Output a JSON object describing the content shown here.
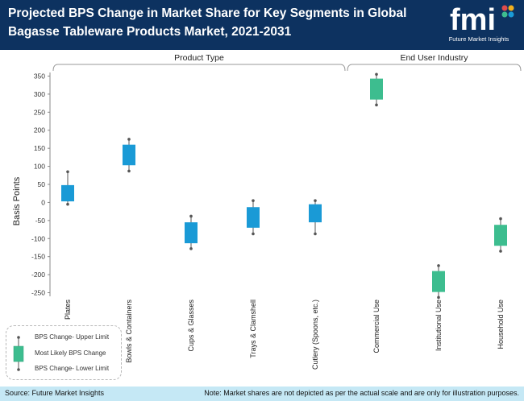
{
  "header": {
    "title": "Projected BPS Change in Market Share for Key Segments in Global Bagasse Tableware Products Market, 2021-2031"
  },
  "logo": {
    "text": "fmi",
    "name": "Future Market Insights"
  },
  "legend": {
    "upper": "BPS Change- Upper Limit",
    "likely": "Most Likely BPS Change",
    "lower": "BPS Change- Lower Limit"
  },
  "footer": {
    "source": "Source: Future Market Insights",
    "note": "Note: Market shares are not depicted as per the actual scale and are only for illustration purposes."
  },
  "colors": {
    "header_bg": "#0d3260",
    "product_type": "#1a9ad6",
    "end_user": "#3dbd8f",
    "footer_bg": "#c5e8f5"
  },
  "chart_data": {
    "type": "box",
    "ylabel": "Basis Points",
    "ylim": [
      -260,
      360
    ],
    "yticks": [
      350,
      300,
      250,
      200,
      150,
      100,
      50,
      0,
      -50,
      -100,
      -150,
      -200,
      -250
    ],
    "groups": [
      {
        "label": "Product Type",
        "color": "#1a9ad6",
        "categories": [
          0,
          1,
          2,
          3,
          4
        ]
      },
      {
        "label": "End User Industry",
        "color": "#3dbd8f",
        "categories": [
          5,
          6,
          7
        ]
      }
    ],
    "categories": [
      "Plates",
      "Bowls & Containers",
      "Cups & Glasses",
      "Trays & Clamshell",
      "Cutlery (Spoons, etc.)",
      "Commercial Use",
      "Institutional Use",
      "Household Use"
    ],
    "series": [
      {
        "upper": 85,
        "box_high": 48,
        "box_low": 3,
        "lower": -5
      },
      {
        "upper": 175,
        "box_high": 160,
        "box_low": 103,
        "lower": 87
      },
      {
        "upper": -38,
        "box_high": -55,
        "box_low": -113,
        "lower": -128
      },
      {
        "upper": 5,
        "box_high": -13,
        "box_low": -70,
        "lower": -87
      },
      {
        "upper": 5,
        "box_high": -5,
        "box_low": -55,
        "lower": -87
      },
      {
        "upper": 355,
        "box_high": 343,
        "box_low": 285,
        "lower": 270
      },
      {
        "upper": -175,
        "box_high": -190,
        "box_low": -248,
        "lower": -263
      },
      {
        "upper": -45,
        "box_high": -62,
        "box_low": -120,
        "lower": -135
      }
    ]
  }
}
